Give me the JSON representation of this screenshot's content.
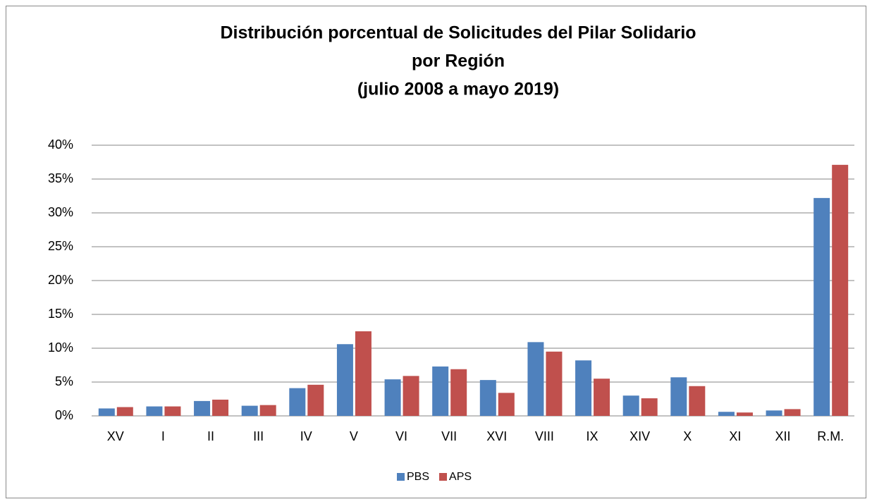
{
  "chart_data": {
    "type": "bar",
    "title": [
      "Distribución porcentual de Solicitudes del Pilar Solidario",
      "por Región",
      "(julio 2008 a mayo 2019)"
    ],
    "categories": [
      "XV",
      "I",
      "II",
      "III",
      "IV",
      "V",
      "VI",
      "VII",
      "XVI",
      "VIII",
      "IX",
      "XIV",
      "X",
      "XI",
      "XII",
      "R.M."
    ],
    "series": [
      {
        "name": "PBS",
        "color": "#4f81bd",
        "values": [
          1.1,
          1.4,
          2.2,
          1.5,
          4.1,
          10.6,
          5.4,
          7.3,
          5.3,
          10.9,
          8.2,
          3.0,
          5.7,
          0.6,
          0.8,
          32.2
        ]
      },
      {
        "name": "APS",
        "color": "#c0504d",
        "values": [
          1.3,
          1.4,
          2.4,
          1.6,
          4.6,
          12.5,
          5.9,
          6.9,
          3.4,
          9.5,
          5.5,
          2.6,
          4.4,
          0.5,
          1.0,
          37.1
        ]
      }
    ],
    "ylim": [
      0,
      40
    ],
    "yticks": [
      {
        "value": 0,
        "label": "0%"
      },
      {
        "value": 5,
        "label": "5%"
      },
      {
        "value": 10,
        "label": "10%"
      },
      {
        "value": 15,
        "label": "15%"
      },
      {
        "value": 20,
        "label": "20%"
      },
      {
        "value": 25,
        "label": "25%"
      },
      {
        "value": 30,
        "label": "30%"
      },
      {
        "value": 35,
        "label": "35%"
      },
      {
        "value": 40,
        "label": "40%"
      }
    ],
    "grid": true,
    "legend": "bottom"
  }
}
